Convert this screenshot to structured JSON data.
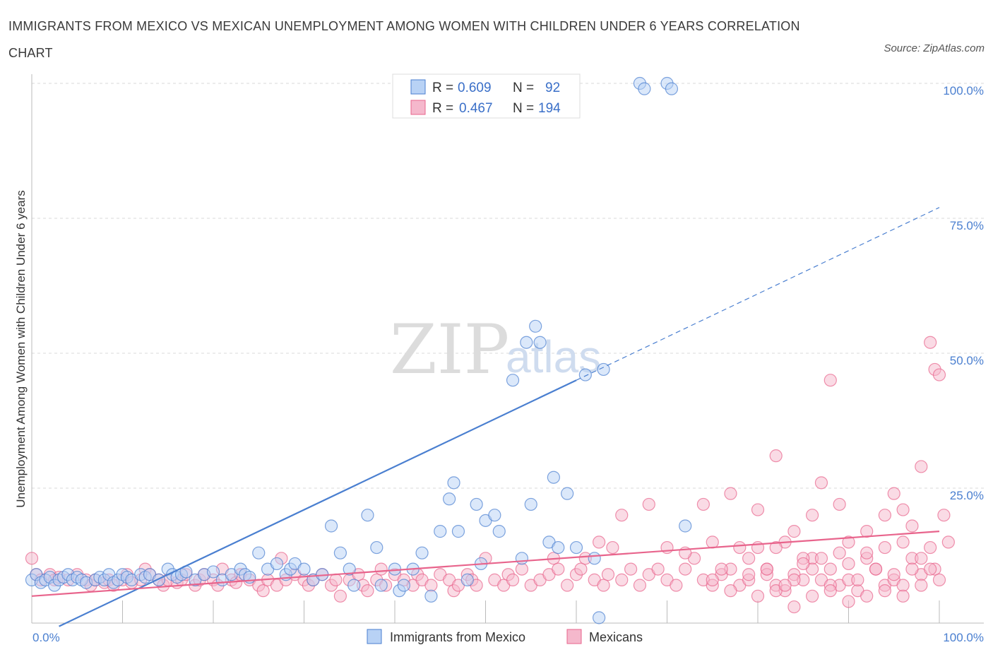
{
  "title": "IMMIGRANTS FROM MEXICO VS MEXICAN UNEMPLOYMENT AMONG WOMEN WITH CHILDREN UNDER 6 YEARS CORRELATION CHART",
  "source": "Source: ZipAtlas.com",
  "watermark": {
    "zip": "ZIP",
    "atlas": "atlas"
  },
  "colors": {
    "blue": "#4a7fd0",
    "blue_fill": "#b8d2f5",
    "pink": "#e8648c",
    "pink_fill": "#f5b8cc",
    "grid": "#d8d8d8"
  },
  "legend": {
    "r_label": "R =",
    "n_label": "N =",
    "entries": [
      {
        "r": "0.609",
        "n": "92"
      },
      {
        "r": "0.467",
        "n": "194"
      }
    ]
  },
  "bottom_legend": [
    "Immigrants from Mexico",
    "Mexicans"
  ],
  "chart_data": {
    "type": "scatter",
    "title": "IMMIGRANTS FROM MEXICO VS MEXICAN UNEMPLOYMENT AMONG WOMEN WITH CHILDREN UNDER 6 YEARS CORRELATION CHART",
    "xlabel": "",
    "ylabel": "Unemployment Among Women with Children Under 6 years",
    "xlim": [
      0,
      100
    ],
    "ylim": [
      0,
      100
    ],
    "x_tick_labels": [
      "0.0%",
      "100.0%"
    ],
    "y_tick_labels": [
      "25.0%",
      "50.0%",
      "75.0%",
      "100.0%"
    ],
    "y_ticks": [
      25,
      50,
      75,
      100
    ],
    "grid": true,
    "legend_placement": "top-center",
    "series": [
      {
        "name": "Immigrants from Mexico",
        "r": 0.609,
        "n": 92,
        "trend": {
          "x0": 0,
          "y0": -3,
          "x1": 60,
          "y1": 45,
          "dashed_to_x": 100,
          "dashed_to_y": 77
        },
        "points": [
          [
            0,
            8
          ],
          [
            0.5,
            9
          ],
          [
            1,
            7.5
          ],
          [
            1.5,
            8
          ],
          [
            2,
            8.5
          ],
          [
            2.5,
            7
          ],
          [
            3,
            8
          ],
          [
            3.5,
            8.5
          ],
          [
            4,
            9
          ],
          [
            4.5,
            8
          ],
          [
            5,
            8.5
          ],
          [
            5.5,
            8
          ],
          [
            6,
            7.5
          ],
          [
            7,
            8
          ],
          [
            7.5,
            8.5
          ],
          [
            8,
            8
          ],
          [
            8.5,
            9
          ],
          [
            9,
            7.5
          ],
          [
            9.5,
            8
          ],
          [
            10,
            9
          ],
          [
            10.5,
            8.5
          ],
          [
            11,
            8
          ],
          [
            12,
            9
          ],
          [
            12.5,
            8.5
          ],
          [
            13,
            9
          ],
          [
            14,
            8
          ],
          [
            15,
            10
          ],
          [
            15.5,
            9
          ],
          [
            16,
            8.5
          ],
          [
            16.5,
            9
          ],
          [
            17,
            9.5
          ],
          [
            18,
            8
          ],
          [
            19,
            9
          ],
          [
            20,
            9.5
          ],
          [
            21,
            8
          ],
          [
            22,
            9
          ],
          [
            23,
            10
          ],
          [
            23.5,
            9
          ],
          [
            24,
            8.5
          ],
          [
            25,
            13
          ],
          [
            26,
            10
          ],
          [
            27,
            11
          ],
          [
            28,
            9
          ],
          [
            28.5,
            10
          ],
          [
            29,
            11
          ],
          [
            30,
            10
          ],
          [
            31,
            8
          ],
          [
            32,
            9
          ],
          [
            33,
            18
          ],
          [
            34,
            13
          ],
          [
            35,
            10
          ],
          [
            35.5,
            7
          ],
          [
            37,
            20
          ],
          [
            38,
            14
          ],
          [
            38.5,
            7
          ],
          [
            40,
            10
          ],
          [
            40.5,
            6
          ],
          [
            41,
            7
          ],
          [
            42,
            10
          ],
          [
            43,
            13
          ],
          [
            44,
            5
          ],
          [
            45,
            17
          ],
          [
            46,
            23
          ],
          [
            46.5,
            26
          ],
          [
            47,
            17
          ],
          [
            48,
            8
          ],
          [
            49,
            22
          ],
          [
            49.5,
            11
          ],
          [
            50,
            19
          ],
          [
            51,
            20
          ],
          [
            51.5,
            17
          ],
          [
            53,
            45
          ],
          [
            54,
            12
          ],
          [
            54.5,
            52
          ],
          [
            55,
            22
          ],
          [
            55.5,
            55
          ],
          [
            56,
            52
          ],
          [
            57,
            15
          ],
          [
            57.5,
            27
          ],
          [
            58,
            14
          ],
          [
            59,
            24
          ],
          [
            60,
            14
          ],
          [
            61,
            46
          ],
          [
            62,
            12
          ],
          [
            62.5,
            1
          ],
          [
            63,
            47
          ],
          [
            67,
            100
          ],
          [
            67.5,
            99
          ],
          [
            70,
            100
          ],
          [
            70.5,
            99
          ],
          [
            72,
            18
          ]
        ]
      },
      {
        "name": "Mexicans",
        "r": 0.467,
        "n": 194,
        "trend": {
          "x0": 0,
          "y0": 5,
          "x1": 100,
          "y1": 17
        },
        "points": [
          [
            0,
            12
          ],
          [
            0.5,
            9
          ],
          [
            1,
            8
          ],
          [
            2,
            9
          ],
          [
            2.5,
            8
          ],
          [
            3,
            8.5
          ],
          [
            4,
            8
          ],
          [
            5,
            9
          ],
          [
            6,
            8
          ],
          [
            6.5,
            7
          ],
          [
            7,
            8
          ],
          [
            8,
            7.5
          ],
          [
            8.5,
            8
          ],
          [
            9,
            7
          ],
          [
            10,
            8
          ],
          [
            10.5,
            9
          ],
          [
            11,
            7.5
          ],
          [
            12,
            8
          ],
          [
            12.5,
            10
          ],
          [
            13,
            9
          ],
          [
            14,
            8
          ],
          [
            14.5,
            7
          ],
          [
            15,
            8
          ],
          [
            16,
            7.5
          ],
          [
            16.5,
            8
          ],
          [
            17,
            9
          ],
          [
            18,
            7
          ],
          [
            18.5,
            8
          ],
          [
            19,
            9
          ],
          [
            20,
            8
          ],
          [
            20.5,
            7
          ],
          [
            21,
            10
          ],
          [
            22,
            8
          ],
          [
            22.5,
            7.5
          ],
          [
            23,
            9
          ],
          [
            24,
            8
          ],
          [
            25,
            7
          ],
          [
            25.5,
            6
          ],
          [
            26,
            8
          ],
          [
            27,
            7
          ],
          [
            27.5,
            12
          ],
          [
            28,
            8
          ],
          [
            29,
            9
          ],
          [
            30,
            8
          ],
          [
            30.5,
            7
          ],
          [
            31,
            8
          ],
          [
            32,
            9
          ],
          [
            33,
            7
          ],
          [
            33.5,
            8
          ],
          [
            34,
            5
          ],
          [
            35,
            8
          ],
          [
            36,
            9
          ],
          [
            36.5,
            7
          ],
          [
            37,
            6
          ],
          [
            38,
            8
          ],
          [
            38.5,
            10
          ],
          [
            39,
            7
          ],
          [
            40,
            9
          ],
          [
            41,
            8
          ],
          [
            42,
            7
          ],
          [
            42.5,
            9
          ],
          [
            43,
            8
          ],
          [
            44,
            7
          ],
          [
            45,
            9
          ],
          [
            46,
            8
          ],
          [
            46.5,
            6
          ],
          [
            47,
            7
          ],
          [
            48,
            9
          ],
          [
            48.5,
            8
          ],
          [
            49,
            7
          ],
          [
            50,
            12
          ],
          [
            51,
            8
          ],
          [
            52,
            7
          ],
          [
            52.5,
            9
          ],
          [
            53,
            8
          ],
          [
            54,
            10
          ],
          [
            55,
            7
          ],
          [
            56,
            8
          ],
          [
            57,
            9
          ],
          [
            57.5,
            12
          ],
          [
            58,
            10
          ],
          [
            59,
            7
          ],
          [
            60,
            9
          ],
          [
            60.5,
            10
          ],
          [
            61,
            12
          ],
          [
            62,
            8
          ],
          [
            62.5,
            15
          ],
          [
            63,
            7
          ],
          [
            63.5,
            9
          ],
          [
            64,
            14
          ],
          [
            65,
            8
          ],
          [
            66,
            10
          ],
          [
            67,
            7
          ],
          [
            68,
            9
          ],
          [
            69,
            10
          ],
          [
            70,
            8
          ],
          [
            71,
            7
          ],
          [
            72,
            10
          ],
          [
            73,
            12
          ],
          [
            74,
            8
          ],
          [
            75,
            7
          ],
          [
            76,
            9
          ],
          [
            77,
            10
          ],
          [
            78,
            7
          ],
          [
            79,
            8
          ],
          [
            80,
            14
          ],
          [
            81,
            10
          ],
          [
            82,
            7
          ],
          [
            83,
            15
          ],
          [
            84,
            9
          ],
          [
            85,
            8
          ],
          [
            86,
            12
          ],
          [
            87,
            8
          ],
          [
            88,
            10
          ],
          [
            89,
            7
          ],
          [
            90,
            8
          ],
          [
            91,
            6
          ],
          [
            92,
            12
          ],
          [
            93,
            10
          ],
          [
            94,
            7
          ],
          [
            95,
            8
          ],
          [
            96,
            15
          ],
          [
            97,
            12
          ],
          [
            98,
            9
          ],
          [
            99,
            14
          ],
          [
            99.5,
            10
          ],
          [
            65,
            20
          ],
          [
            68,
            22
          ],
          [
            70,
            14
          ],
          [
            72,
            13
          ],
          [
            74,
            22
          ],
          [
            75,
            15
          ],
          [
            76,
            10
          ],
          [
            77,
            24
          ],
          [
            78,
            14
          ],
          [
            79,
            12
          ],
          [
            80,
            21
          ],
          [
            81,
            9
          ],
          [
            82,
            14
          ],
          [
            83,
            6
          ],
          [
            84,
            8
          ],
          [
            85,
            12
          ],
          [
            86,
            10
          ],
          [
            87,
            26
          ],
          [
            88,
            7
          ],
          [
            89,
            22
          ],
          [
            90,
            15
          ],
          [
            91,
            8
          ],
          [
            92,
            13
          ],
          [
            93,
            10
          ],
          [
            94,
            14
          ],
          [
            95,
            9
          ],
          [
            96,
            7
          ],
          [
            97,
            10
          ],
          [
            98,
            12
          ],
          [
            99,
            10
          ],
          [
            80,
            5
          ],
          [
            82,
            6
          ],
          [
            84,
            3
          ],
          [
            86,
            5
          ],
          [
            88,
            6
          ],
          [
            90,
            4
          ],
          [
            92,
            5
          ],
          [
            94,
            6
          ],
          [
            96,
            5
          ],
          [
            98,
            7
          ],
          [
            100,
            8
          ],
          [
            82,
            31
          ],
          [
            84,
            17
          ],
          [
            86,
            20
          ],
          [
            88,
            45
          ],
          [
            90,
            11
          ],
          [
            92,
            17
          ],
          [
            94,
            20
          ],
          [
            95,
            24
          ],
          [
            96,
            21
          ],
          [
            97,
            18
          ],
          [
            98,
            29
          ],
          [
            99,
            52
          ],
          [
            99.5,
            47
          ],
          [
            100,
            46
          ],
          [
            100.5,
            20
          ],
          [
            101,
            15
          ],
          [
            75,
            8
          ],
          [
            77,
            6
          ],
          [
            79,
            9
          ],
          [
            81,
            10
          ],
          [
            83,
            7
          ],
          [
            85,
            11
          ],
          [
            87,
            12
          ],
          [
            89,
            13
          ]
        ]
      }
    ]
  }
}
